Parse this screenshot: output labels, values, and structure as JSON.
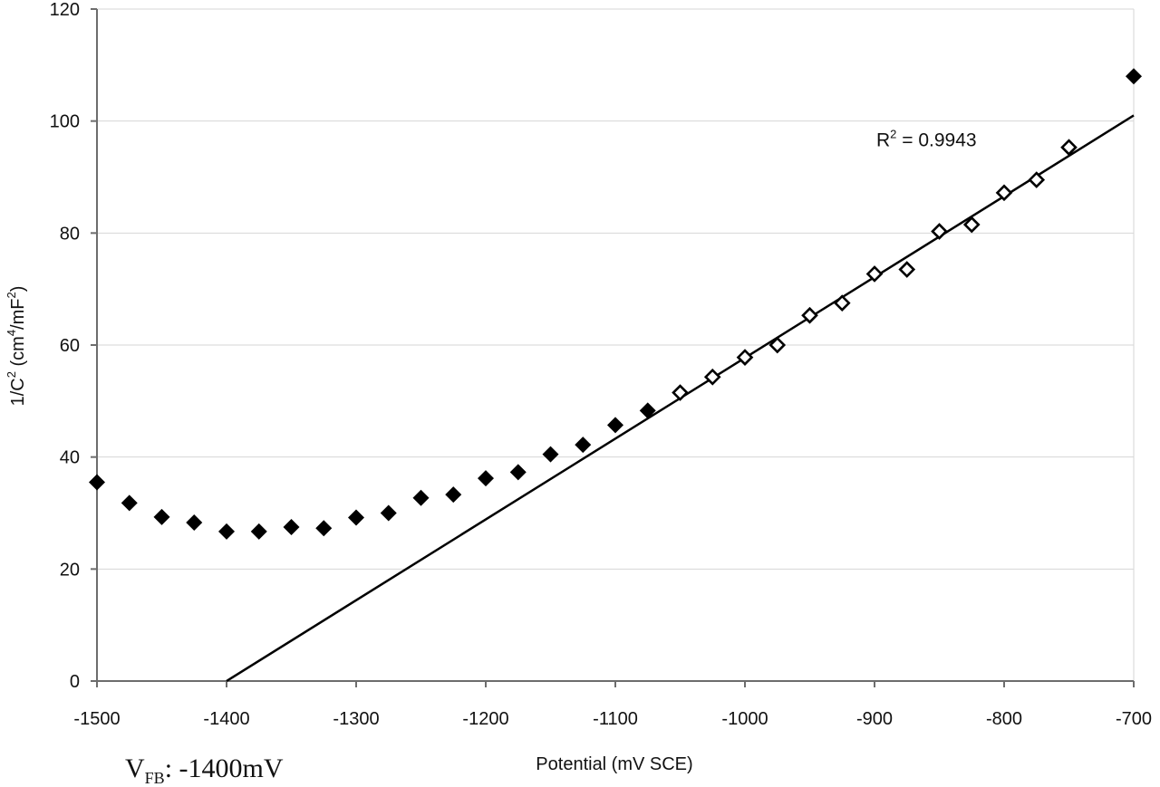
{
  "chart_data": {
    "type": "scatter",
    "xlabel": "Potential (mV SCE)",
    "ylabel_base": "1/C",
    "ylabel_sup": "2",
    "ylabel_units_pre": " (cm",
    "ylabel_units_sup": "4",
    "ylabel_units_post": "/mF",
    "ylabel_units_sup2": "2",
    "ylabel_close": ")",
    "xlim": [
      -1500,
      -700
    ],
    "ylim": [
      0,
      120
    ],
    "x_ticks": [
      -1500,
      -1400,
      -1300,
      -1200,
      -1100,
      -1000,
      -900,
      -800,
      -700
    ],
    "y_ticks": [
      0,
      20,
      40,
      60,
      80,
      100,
      120
    ],
    "grid": "horizontal",
    "series": [
      {
        "marker": "filled-diamond",
        "color": "#000000",
        "x": [
          -1500,
          -1475,
          -1450,
          -1425,
          -1400,
          -1375,
          -1350,
          -1325,
          -1300,
          -1275,
          -1250,
          -1225,
          -1200,
          -1175,
          -1150,
          -1125,
          -1100,
          -1075,
          -700
        ],
        "y": [
          35.5,
          31.8,
          29.3,
          28.3,
          26.7,
          26.7,
          27.5,
          27.3,
          29.2,
          30.0,
          32.7,
          33.3,
          36.2,
          37.3,
          40.5,
          42.2,
          45.7,
          48.3,
          108.0
        ]
      },
      {
        "marker": "open-diamond",
        "color": "#000000",
        "x": [
          -1050,
          -1025,
          -1000,
          -975,
          -950,
          -925,
          -900,
          -875,
          -850,
          -825,
          -800,
          -775,
          -750
        ],
        "y": [
          51.5,
          54.3,
          57.8,
          60.0,
          65.3,
          67.5,
          72.7,
          73.5,
          80.3,
          81.5,
          87.2,
          89.5,
          95.3
        ]
      }
    ],
    "fit_line": {
      "x": [
        -1400,
        -700
      ],
      "y": [
        0,
        101
      ],
      "color": "#000000"
    },
    "annotation": {
      "r2_label": "R",
      "r2_sup": "2",
      "r2_value": " = 0.9943",
      "x": -900,
      "y": 95.5
    }
  },
  "vfb": {
    "main": "V",
    "sub": "FB",
    "value": ": -1400mV"
  }
}
